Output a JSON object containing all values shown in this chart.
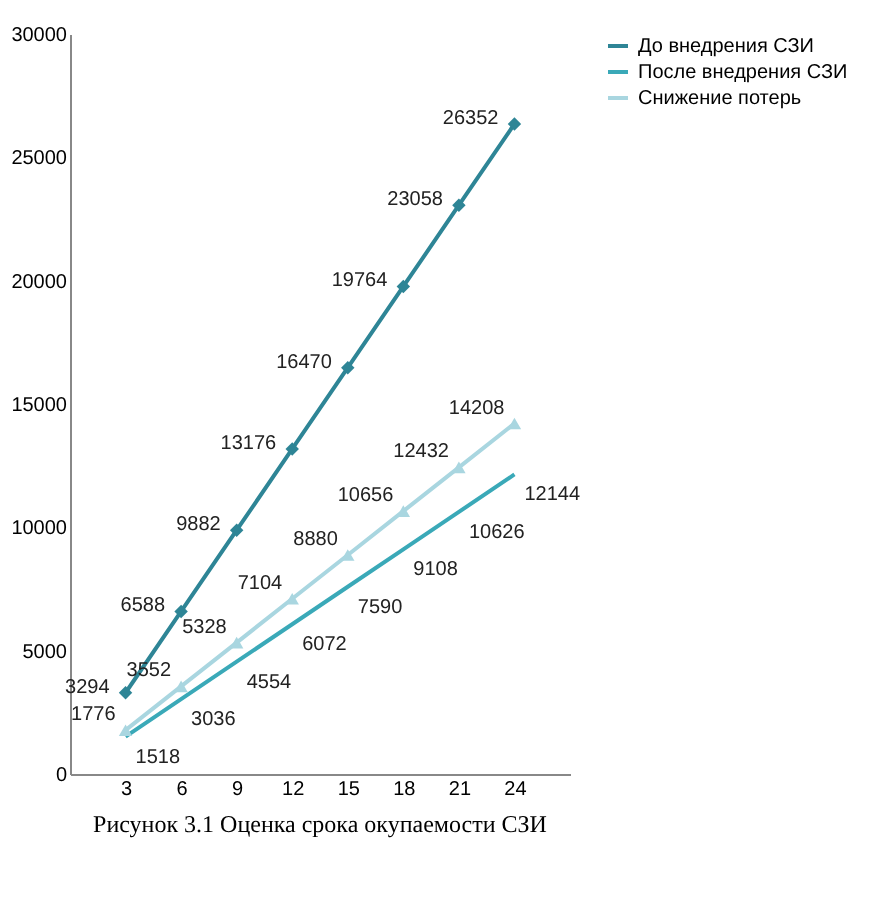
{
  "chart_data": {
    "type": "line",
    "title": "Рисунок 3.1  Оценка срока окупаемости СЗИ",
    "categories": [
      "3",
      "6",
      "9",
      "12",
      "15",
      "18",
      "21",
      "24"
    ],
    "series": [
      {
        "name": "До внедрения СЗИ",
        "color": "#2e8596",
        "marker": "diamond",
        "values": [
          3294,
          6588,
          9882,
          13176,
          16470,
          19764,
          23058,
          26352
        ]
      },
      {
        "name": "После внедрения СЗИ",
        "color": "#3aa9b8",
        "marker": "none",
        "values": [
          1518,
          3036,
          4554,
          6072,
          7590,
          9108,
          10626,
          12144
        ]
      },
      {
        "name": "Снижение потерь",
        "color": "#a9d6e0",
        "marker": "triangle",
        "values": [
          1776,
          3552,
          5328,
          7104,
          8880,
          10656,
          12432,
          14208
        ]
      }
    ],
    "ylim": [
      0,
      30000
    ],
    "yticks": [
      0,
      5000,
      10000,
      15000,
      20000,
      25000,
      30000
    ],
    "grid": false,
    "legend": "right",
    "data_labels": true
  }
}
